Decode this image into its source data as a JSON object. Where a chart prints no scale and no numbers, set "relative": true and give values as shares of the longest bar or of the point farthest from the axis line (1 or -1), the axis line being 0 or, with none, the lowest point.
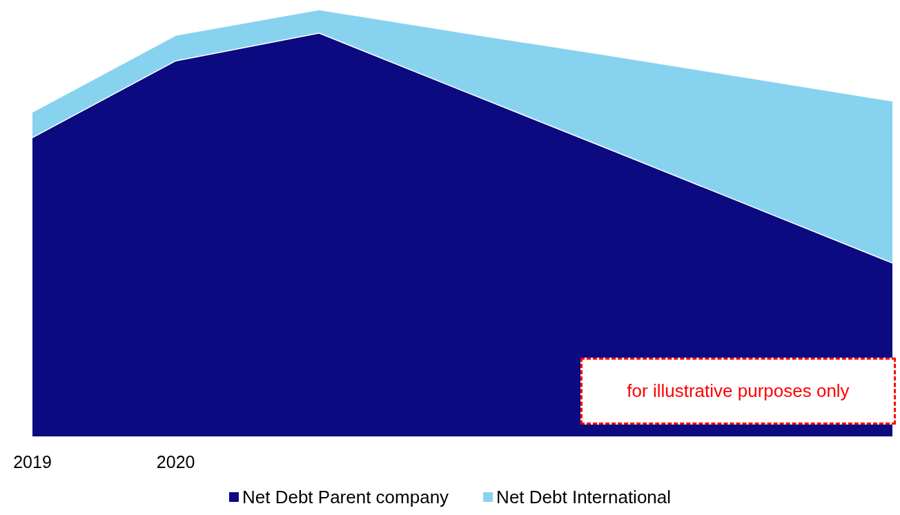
{
  "chart_data": {
    "type": "area",
    "relative": true,
    "stacked": true,
    "categories": [
      "2019",
      "2020",
      null,
      null,
      null,
      null,
      null
    ],
    "series": [
      {
        "name": "Net Debt Parent company",
        "color": "#0b0a80",
        "values": [
          0.7,
          0.88,
          0.945,
          0.81,
          0.676,
          0.541,
          0.406
        ]
      },
      {
        "name": "Net Debt International",
        "color": "#87d3ef",
        "values": [
          0.06,
          0.06,
          0.055,
          0.136,
          0.218,
          0.299,
          0.38
        ]
      }
    ],
    "legend": "bottom",
    "grid": false,
    "annotations": [
      "for illustrative purposes only"
    ]
  }
}
